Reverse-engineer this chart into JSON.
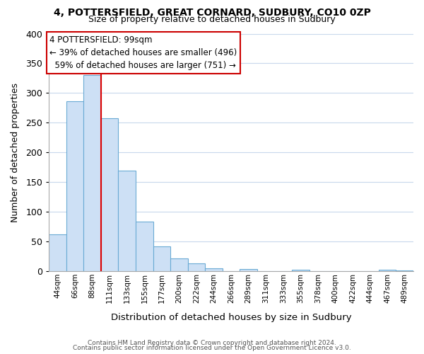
{
  "title": "4, POTTERSFIELD, GREAT CORNARD, SUDBURY, CO10 0ZP",
  "subtitle": "Size of property relative to detached houses in Sudbury",
  "xlabel": "Distribution of detached houses by size in Sudbury",
  "ylabel": "Number of detached properties",
  "bin_labels": [
    "44sqm",
    "66sqm",
    "88sqm",
    "111sqm",
    "133sqm",
    "155sqm",
    "177sqm",
    "200sqm",
    "222sqm",
    "244sqm",
    "266sqm",
    "289sqm",
    "311sqm",
    "333sqm",
    "355sqm",
    "378sqm",
    "400sqm",
    "422sqm",
    "444sqm",
    "467sqm",
    "489sqm"
  ],
  "bar_values": [
    62,
    286,
    330,
    258,
    170,
    84,
    42,
    22,
    13,
    5,
    0,
    4,
    0,
    0,
    3,
    0,
    0,
    0,
    0,
    3,
    2
  ],
  "bar_color": "#cde0f5",
  "bar_edge_color": "#6aaad4",
  "red_line_x": 2.5,
  "highlight_color": "#dd0000",
  "ylim": [
    0,
    400
  ],
  "yticks": [
    0,
    50,
    100,
    150,
    200,
    250,
    300,
    350,
    400
  ],
  "annotation_line1": "4 POTTERSFIELD: 99sqm",
  "annotation_line2": "← 39% of detached houses are smaller (496)",
  "annotation_line3": "  59% of detached houses are larger (751) →",
  "footer1": "Contains HM Land Registry data © Crown copyright and database right 2024.",
  "footer2": "Contains public sector information licensed under the Open Government Licence v3.0.",
  "background_color": "#ffffff",
  "grid_color": "#c8d8ec"
}
